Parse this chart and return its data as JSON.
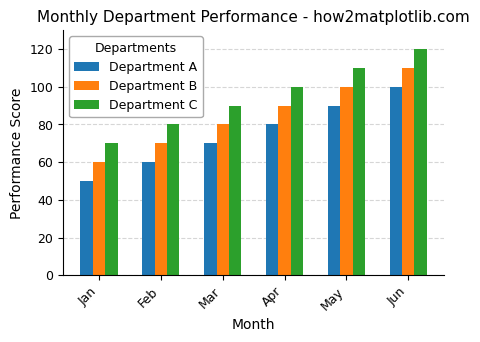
{
  "title": "Monthly Department Performance - how2matplotlib.com",
  "xlabel": "Month",
  "ylabel": "Performance Score",
  "legend_title": "Departments",
  "months": [
    "Jan",
    "Feb",
    "Mar",
    "Apr",
    "May",
    "Jun"
  ],
  "departments": [
    "Department A",
    "Department B",
    "Department C"
  ],
  "values": {
    "Department A": [
      50,
      60,
      70,
      80,
      90,
      100
    ],
    "Department B": [
      60,
      70,
      80,
      90,
      100,
      110
    ],
    "Department C": [
      70,
      80,
      90,
      100,
      110,
      120
    ]
  },
  "bar_colors": {
    "Department A": "#1f77b4",
    "Department B": "#ff7f0e",
    "Department C": "#2ca02c"
  },
  "ylim": [
    0,
    130
  ],
  "yticks": [
    0,
    20,
    40,
    60,
    80,
    100,
    120
  ],
  "bar_width": 0.2,
  "grid_color": "#cccccc",
  "grid_linestyle": "--",
  "grid_alpha": 0.8,
  "legend_loc": "upper left",
  "background_color": "#ffffff",
  "title_fontsize": 11,
  "tick_fontsize": 9,
  "label_fontsize": 10
}
